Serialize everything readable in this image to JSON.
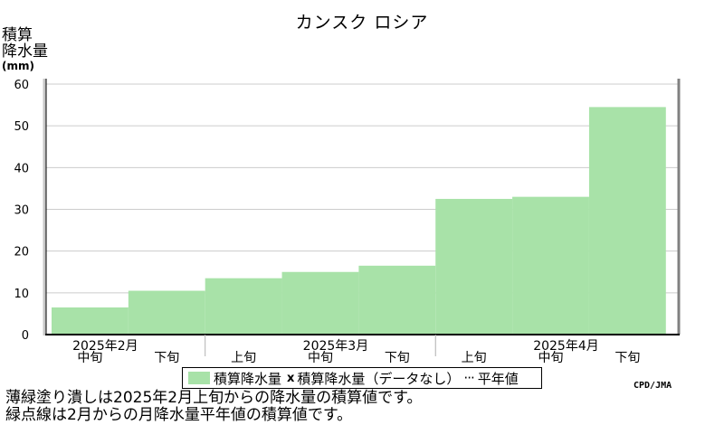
{
  "chart_data": {
    "type": "bar",
    "title": "カンスク ロシア",
    "ylabel": [
      "積算",
      "降水量"
    ],
    "yunit": "(mm)",
    "ylim": [
      0,
      60
    ],
    "yticks": [
      0,
      10,
      20,
      30,
      40,
      50,
      60
    ],
    "grid": true,
    "categories": [
      "2月中旬",
      "2月下旬",
      "3月上旬",
      "3月中旬",
      "3月下旬",
      "4月上旬",
      "4月中旬",
      "4月下旬"
    ],
    "period_labels": [
      "中旬",
      "下旬",
      "上旬",
      "中旬",
      "下旬",
      "上旬",
      "中旬",
      "下旬"
    ],
    "month_labels": [
      {
        "label": "2025年2月",
        "index": 0
      },
      {
        "label": "2025年3月",
        "index": 3
      },
      {
        "label": "2025年4月",
        "index": 6
      }
    ],
    "series": [
      {
        "name": "積算降水量",
        "values": [
          6.5,
          10.5,
          13.5,
          15,
          16.5,
          32.5,
          33,
          54.5
        ]
      }
    ],
    "bar_color": "#a8e2a8",
    "grid_color": "#cccccc"
  },
  "legend": {
    "item1": "積算降水量",
    "mark": "x",
    "item2": "積算降水量（データなし）",
    "item3": "平年値"
  },
  "credit": "CPD/JMA",
  "notes": [
    "薄緑塗り潰しは2025年2月上旬からの降水量の積算値です。",
    "緑点線は2月からの月降水量平年値の積算値です。"
  ]
}
